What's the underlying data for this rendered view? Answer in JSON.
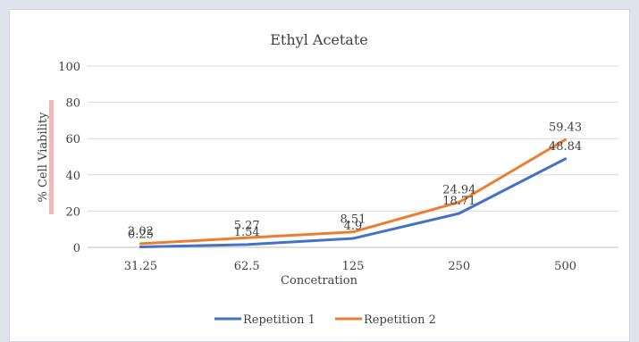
{
  "chart_data": {
    "type": "line",
    "title": "Ethyl Acetate",
    "xlabel": "Concetration",
    "ylabel": "% Cell Viability",
    "categories": [
      "31.25",
      "62.5",
      "125",
      "250",
      "500"
    ],
    "ylim": [
      0,
      100
    ],
    "yticks": [
      0,
      20,
      40,
      60,
      80,
      100
    ],
    "grid": true,
    "legend_position": "bottom",
    "series": [
      {
        "name": "Repetition 1",
        "color": "#4472c4",
        "values": [
          0.25,
          1.54,
          4.9,
          18.71,
          48.84
        ],
        "labels": [
          "0.25",
          "1.54",
          "4.9",
          "18.71",
          "48.84"
        ]
      },
      {
        "name": "Repetition 2",
        "color": "#ed7d31",
        "values": [
          2.02,
          5.27,
          8.51,
          24.94,
          59.43
        ],
        "labels": [
          "2.02",
          "5.27",
          "8.51",
          "24.94",
          "59.43"
        ]
      }
    ]
  }
}
